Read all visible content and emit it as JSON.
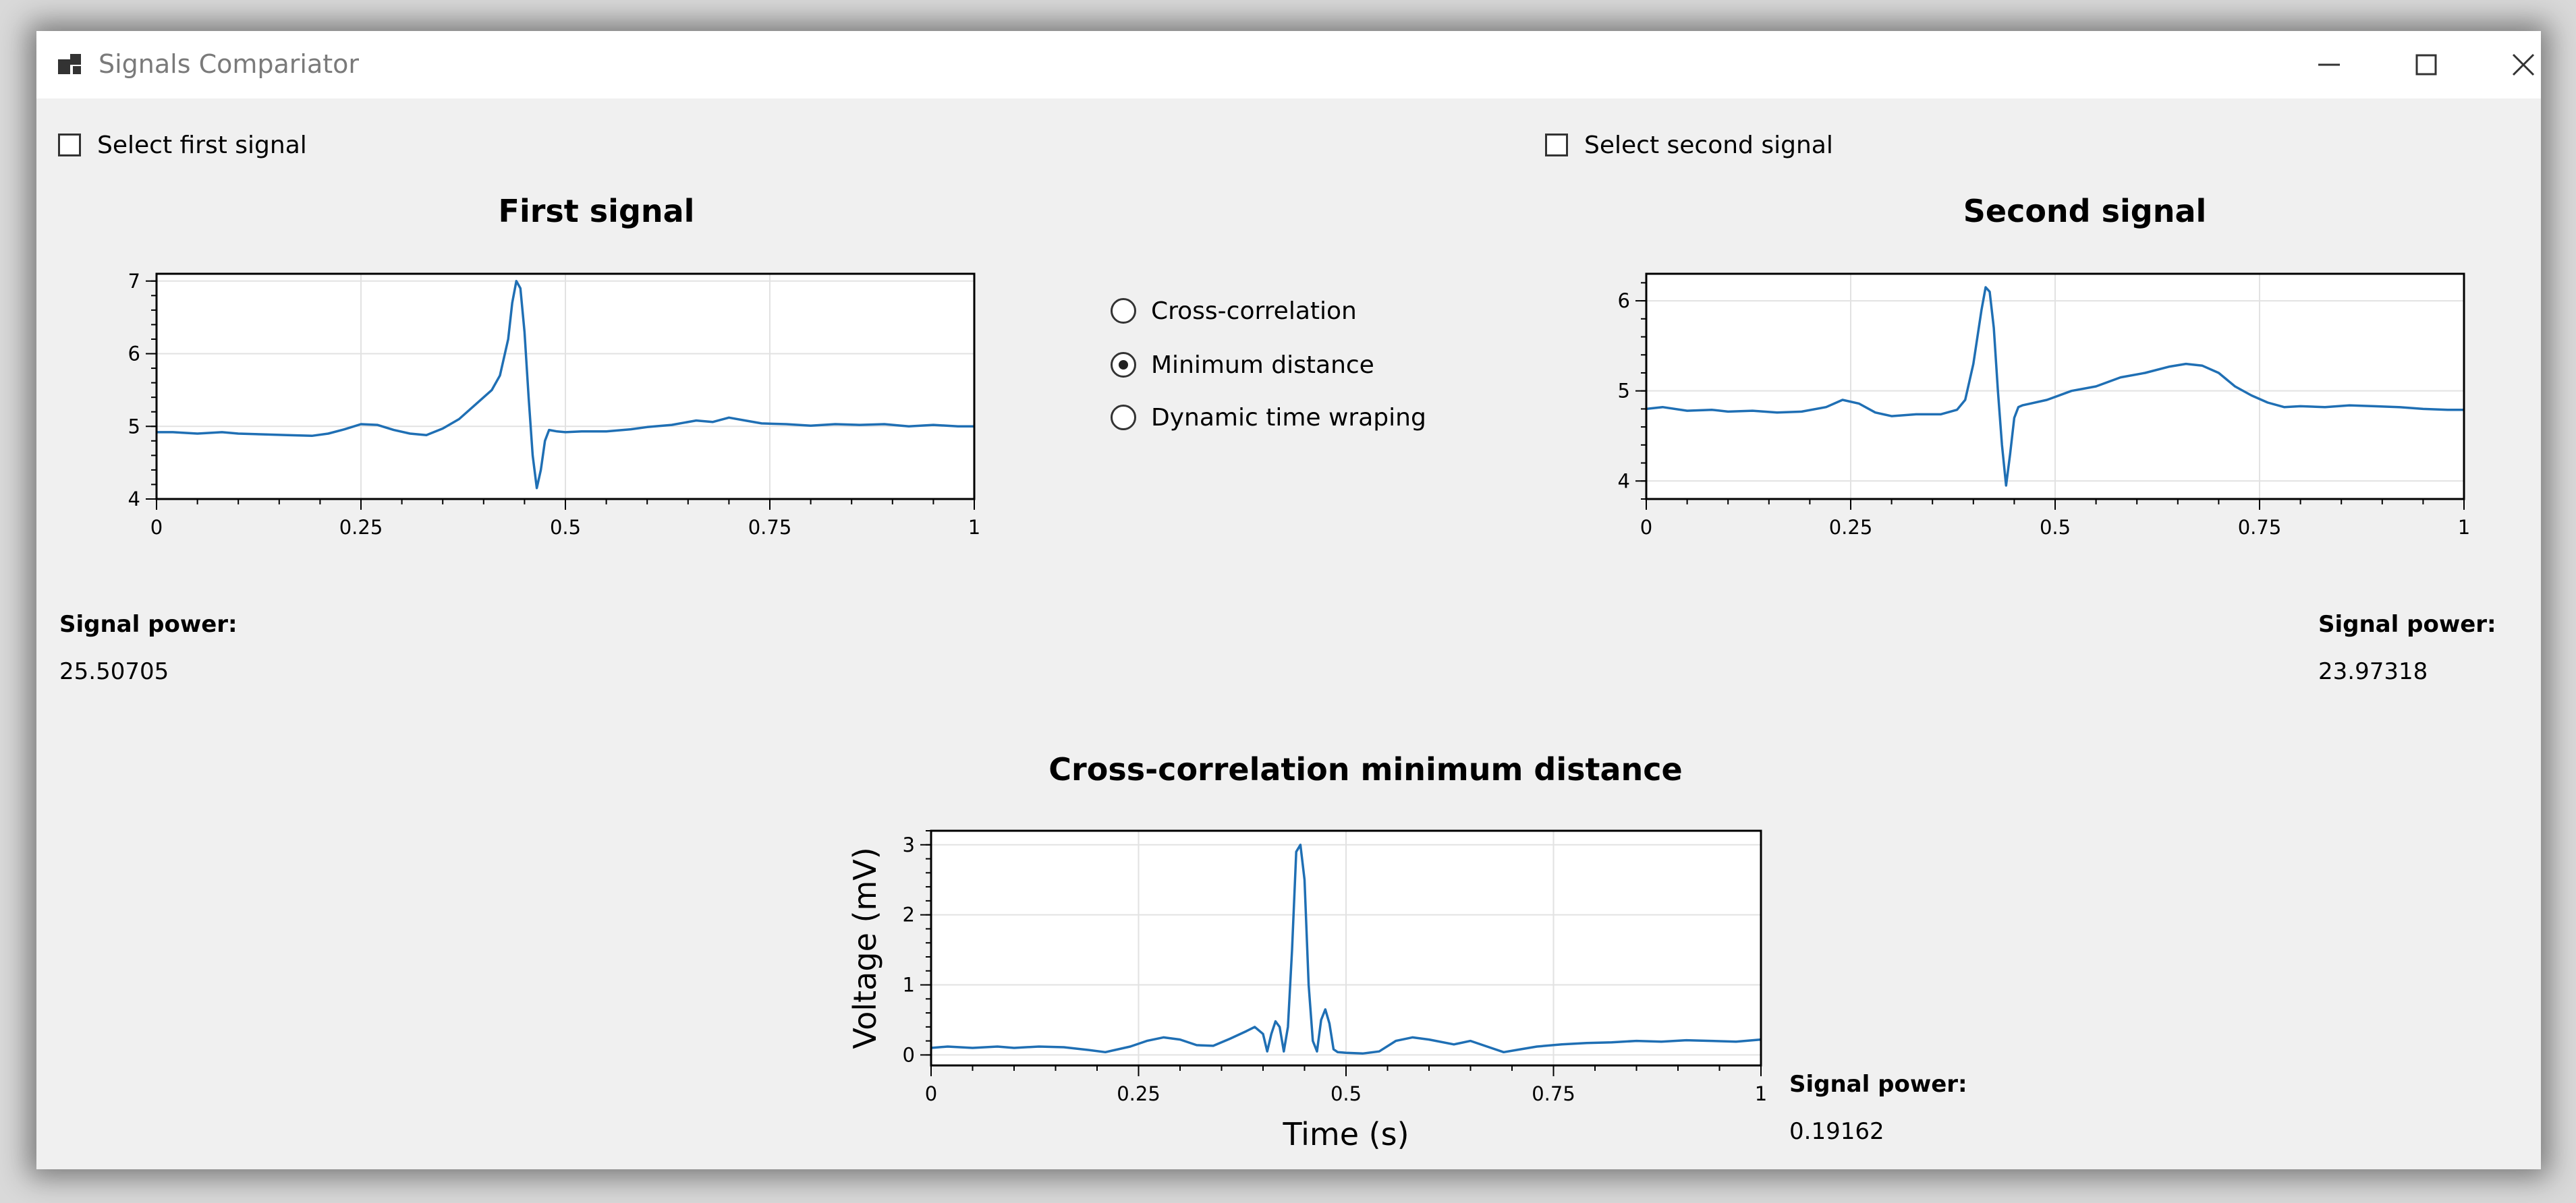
{
  "window": {
    "title": "Signals Compariator",
    "icon": "app-window-icon"
  },
  "controls": {
    "select_first": "Select first signal",
    "select_second": "Select second signal",
    "methods": [
      {
        "label": "Cross-correlation",
        "selected": false
      },
      {
        "label": "Minimum distance",
        "selected": true
      },
      {
        "label": "Dynamic time wraping",
        "selected": false
      }
    ]
  },
  "first_power": {
    "label": "Signal power:",
    "value": "25.50705"
  },
  "second_power": {
    "label": "Signal power:",
    "value": "23.97318"
  },
  "result_power": {
    "label": "Signal power:",
    "value": "0.19162"
  },
  "chart_data": [
    {
      "id": "first",
      "type": "line",
      "title": "First signal",
      "xlabel": "",
      "ylabel": "",
      "xlim": [
        0,
        1
      ],
      "ylim": [
        4,
        7.1
      ],
      "xticks": [
        0,
        0.25,
        0.5,
        0.75,
        1
      ],
      "xtick_labels": [
        "0",
        "0.25",
        "0.5",
        "0.75",
        "1"
      ],
      "yticks": [
        4,
        5,
        6,
        7
      ],
      "ytick_labels": [
        "4",
        "5",
        "6",
        "7"
      ],
      "grid": true,
      "line_color": "#1f6fb4",
      "x": [
        0,
        0.02,
        0.05,
        0.08,
        0.1,
        0.13,
        0.16,
        0.19,
        0.21,
        0.23,
        0.25,
        0.27,
        0.29,
        0.31,
        0.33,
        0.35,
        0.37,
        0.39,
        0.41,
        0.42,
        0.43,
        0.435,
        0.44,
        0.445,
        0.45,
        0.455,
        0.46,
        0.465,
        0.47,
        0.475,
        0.48,
        0.49,
        0.5,
        0.52,
        0.55,
        0.58,
        0.6,
        0.63,
        0.66,
        0.68,
        0.7,
        0.72,
        0.74,
        0.77,
        0.8,
        0.83,
        0.86,
        0.89,
        0.92,
        0.95,
        0.98,
        1
      ],
      "values": [
        4.92,
        4.92,
        4.9,
        4.92,
        4.9,
        4.89,
        4.88,
        4.87,
        4.9,
        4.96,
        5.03,
        5.02,
        4.95,
        4.9,
        4.88,
        4.97,
        5.1,
        5.3,
        5.5,
        5.7,
        6.2,
        6.7,
        7.0,
        6.9,
        6.3,
        5.4,
        4.6,
        4.15,
        4.4,
        4.8,
        4.95,
        4.93,
        4.92,
        4.93,
        4.93,
        4.96,
        4.99,
        5.02,
        5.08,
        5.06,
        5.12,
        5.08,
        5.04,
        5.03,
        5.01,
        5.03,
        5.02,
        5.03,
        5.0,
        5.02,
        5.0,
        5.0
      ]
    },
    {
      "id": "second",
      "type": "line",
      "title": "Second signal",
      "xlabel": "",
      "ylabel": "",
      "xlim": [
        0,
        1
      ],
      "ylim": [
        3.8,
        6.3
      ],
      "xticks": [
        0,
        0.25,
        0.5,
        0.75,
        1
      ],
      "xtick_labels": [
        "0",
        "0.25",
        "0.5",
        "0.75",
        "1"
      ],
      "yticks": [
        4,
        5,
        6
      ],
      "ytick_labels": [
        "4",
        "5",
        "6"
      ],
      "grid": true,
      "line_color": "#1f6fb4",
      "x": [
        0,
        0.02,
        0.05,
        0.08,
        0.1,
        0.13,
        0.16,
        0.19,
        0.22,
        0.24,
        0.26,
        0.28,
        0.3,
        0.33,
        0.36,
        0.38,
        0.39,
        0.4,
        0.41,
        0.415,
        0.42,
        0.425,
        0.43,
        0.435,
        0.44,
        0.445,
        0.45,
        0.455,
        0.46,
        0.47,
        0.49,
        0.52,
        0.55,
        0.58,
        0.61,
        0.64,
        0.66,
        0.68,
        0.7,
        0.72,
        0.74,
        0.76,
        0.78,
        0.8,
        0.83,
        0.86,
        0.89,
        0.92,
        0.95,
        0.98,
        1
      ],
      "values": [
        4.8,
        4.82,
        4.78,
        4.79,
        4.77,
        4.78,
        4.76,
        4.77,
        4.82,
        4.9,
        4.86,
        4.76,
        4.72,
        4.74,
        4.74,
        4.79,
        4.9,
        5.3,
        5.9,
        6.15,
        6.1,
        5.7,
        5.0,
        4.4,
        3.95,
        4.3,
        4.7,
        4.82,
        4.84,
        4.86,
        4.9,
        5.0,
        5.05,
        5.15,
        5.2,
        5.27,
        5.3,
        5.28,
        5.2,
        5.05,
        4.95,
        4.87,
        4.82,
        4.83,
        4.82,
        4.84,
        4.83,
        4.82,
        4.8,
        4.79,
        4.79
      ]
    },
    {
      "id": "result",
      "type": "line",
      "title": "Cross-correlation minimum distance",
      "xlabel": "Time (s)",
      "ylabel": "Voltage (mV)",
      "xlim": [
        0,
        1
      ],
      "ylim": [
        -0.15,
        3.2
      ],
      "xticks": [
        0,
        0.25,
        0.5,
        0.75,
        1
      ],
      "xtick_labels": [
        "0",
        "0.25",
        "0.5",
        "0.75",
        "1"
      ],
      "yticks": [
        0,
        1,
        2,
        3
      ],
      "ytick_labels": [
        "0",
        "1",
        "2",
        "3"
      ],
      "grid": true,
      "line_color": "#1f6fb4",
      "x": [
        0,
        0.02,
        0.05,
        0.08,
        0.1,
        0.13,
        0.16,
        0.19,
        0.21,
        0.24,
        0.26,
        0.28,
        0.3,
        0.32,
        0.34,
        0.36,
        0.38,
        0.39,
        0.4,
        0.405,
        0.41,
        0.415,
        0.42,
        0.425,
        0.43,
        0.435,
        0.44,
        0.445,
        0.45,
        0.455,
        0.46,
        0.465,
        0.47,
        0.475,
        0.48,
        0.485,
        0.49,
        0.5,
        0.52,
        0.54,
        0.56,
        0.58,
        0.6,
        0.63,
        0.65,
        0.67,
        0.69,
        0.71,
        0.73,
        0.76,
        0.79,
        0.82,
        0.85,
        0.88,
        0.91,
        0.94,
        0.97,
        1
      ],
      "values": [
        0.1,
        0.12,
        0.1,
        0.12,
        0.1,
        0.12,
        0.11,
        0.07,
        0.04,
        0.12,
        0.2,
        0.25,
        0.22,
        0.14,
        0.13,
        0.23,
        0.34,
        0.4,
        0.3,
        0.05,
        0.3,
        0.48,
        0.4,
        0.05,
        0.4,
        1.5,
        2.9,
        3.0,
        2.5,
        1.0,
        0.2,
        0.05,
        0.5,
        0.65,
        0.45,
        0.08,
        0.04,
        0.03,
        0.02,
        0.05,
        0.2,
        0.25,
        0.22,
        0.15,
        0.2,
        0.12,
        0.04,
        0.08,
        0.12,
        0.15,
        0.17,
        0.18,
        0.2,
        0.19,
        0.21,
        0.2,
        0.19,
        0.22
      ]
    }
  ]
}
